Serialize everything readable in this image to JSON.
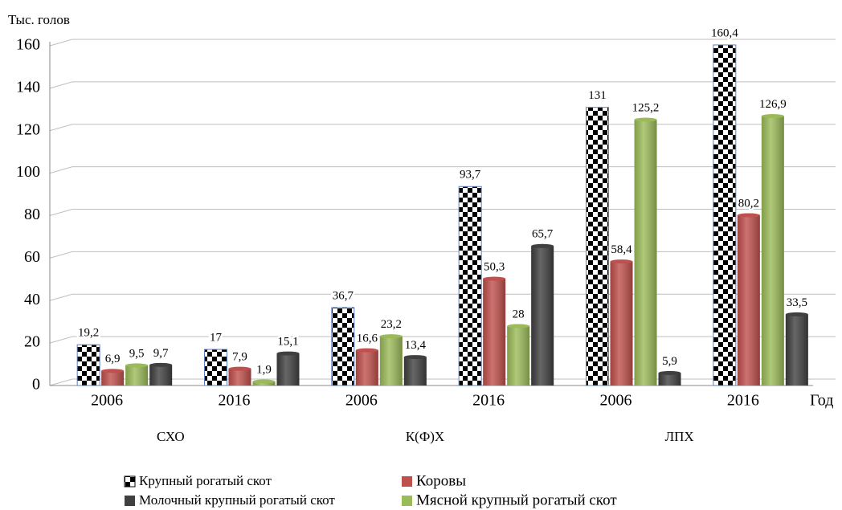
{
  "chart_data": {
    "type": "bar",
    "y_label": "Тыс. голов",
    "x_label": "Год",
    "categories": [
      "2006",
      "2016",
      "2006",
      "2016",
      "2006",
      "2016"
    ],
    "groups": [
      "СХО",
      "К(Ф)Х",
      "ЛПХ"
    ],
    "series": [
      {
        "name": "Крупный рогатый скот",
        "color": "checkered",
        "values": [
          19.2,
          17,
          36.7,
          93.7,
          131,
          160.4
        ],
        "value_labels": [
          "19,2",
          "17",
          "36,7",
          "93,7",
          "131",
          "160,4"
        ]
      },
      {
        "name": "Коровы",
        "color": "#c0504d",
        "values": [
          6.9,
          7.9,
          16.6,
          50.3,
          58.4,
          80.2
        ],
        "value_labels": [
          "6,9",
          "7,9",
          "16,6",
          "50,3",
          "58,4",
          "80,2"
        ]
      },
      {
        "name": "Мясной крупный рогатый скот",
        "color": "#9bbb59",
        "values": [
          9.5,
          1.9,
          23.2,
          28,
          125.2,
          126.9
        ],
        "value_labels": [
          "9,5",
          "1,9",
          "23,2",
          "28",
          "125,2",
          "126,9"
        ]
      },
      {
        "name": "Молочный крупный рогатый скот",
        "color": "#404040",
        "values": [
          9.7,
          15.1,
          13.4,
          65.7,
          5.9,
          33.5
        ],
        "value_labels": [
          "9,7",
          "15,1",
          "13,4",
          "65,7",
          "5,9",
          "33,5"
        ]
      }
    ],
    "ylim": [
      0,
      160
    ],
    "yticks": [
      0,
      20,
      40,
      60,
      80,
      100,
      120,
      140,
      160
    ],
    "grid": true
  }
}
